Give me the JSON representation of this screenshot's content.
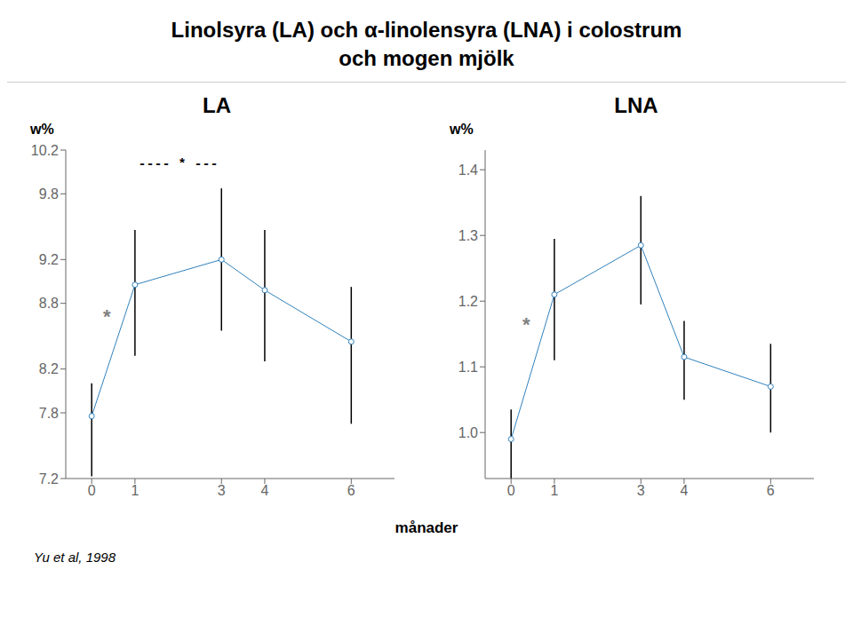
{
  "title": [
    "Linolsyra (LA) och α-linolensyra (LNA) i colostrum",
    "och mogen mjölk"
  ],
  "x_label": "månader",
  "footnote": "Yu et al, 1998",
  "chart_data": [
    {
      "type": "line",
      "title": "LA",
      "y_label": "w%",
      "x": [
        0,
        1,
        3,
        4,
        6
      ],
      "xlim": [
        -0.6,
        7.0
      ],
      "xticks": [
        0,
        1,
        3,
        4,
        6
      ],
      "values": [
        7.77,
        8.97,
        9.2,
        8.92,
        8.45
      ],
      "error_low": [
        0.55,
        0.65,
        0.65,
        0.65,
        0.75
      ],
      "error_high": [
        0.3,
        0.5,
        0.65,
        0.55,
        0.5
      ],
      "ylim": [
        7.2,
        10.2
      ],
      "yticks": [
        7.2,
        7.8,
        8.2,
        8.8,
        9.2,
        9.8,
        10.2
      ],
      "annotations": [
        {
          "text": "---- * ---"
        },
        {
          "text": "*",
          "x": 0.35,
          "y": 8.68
        }
      ]
    },
    {
      "type": "line",
      "title": "LNA",
      "y_label": "w%",
      "x": [
        0,
        1,
        3,
        4,
        6
      ],
      "xlim": [
        -0.6,
        7.0
      ],
      "xticks": [
        0,
        1,
        3,
        4,
        6
      ],
      "values": [
        0.99,
        1.21,
        1.285,
        1.115,
        1.07
      ],
      "error_low": [
        0.06,
        0.1,
        0.09,
        0.065,
        0.07
      ],
      "error_high": [
        0.045,
        0.085,
        0.075,
        0.055,
        0.065
      ],
      "ylim": [
        0.93,
        1.43
      ],
      "yticks": [
        {
          "value": 1.0,
          "label": "1.0"
        },
        1.1,
        1.2,
        1.3,
        1.4
      ],
      "annotations": [
        {
          "text": "*",
          "x": 0.35,
          "y": 1.165
        }
      ]
    }
  ]
}
